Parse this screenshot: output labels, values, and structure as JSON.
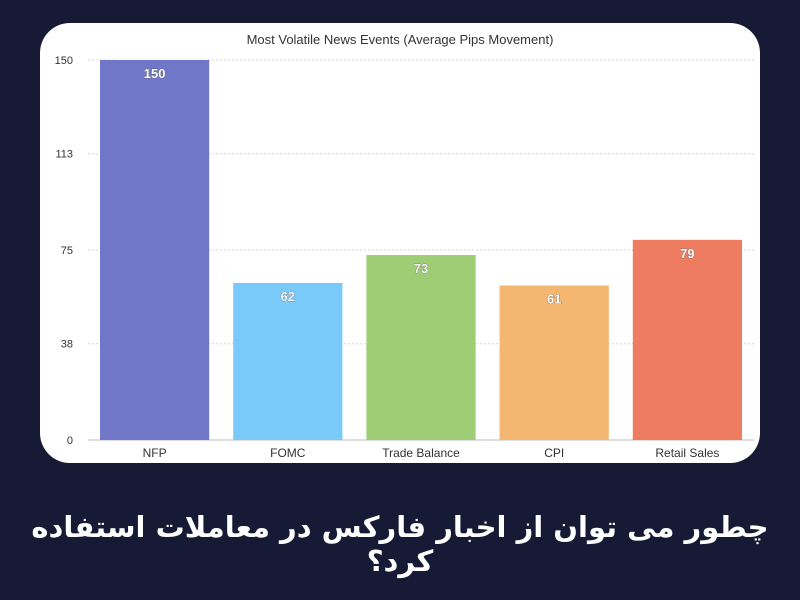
{
  "caption": "چطور می توان از اخبار فارکس در معاملات استفاده کرد؟",
  "chart_data": {
    "type": "bar",
    "title": "Most Volatile News Events (Average Pips Movement)",
    "categories": [
      "NFP",
      "FOMC",
      "Trade Balance",
      "CPI",
      "Retail Sales"
    ],
    "values": [
      150,
      62,
      73,
      61,
      79
    ],
    "colors": [
      "#7077c8",
      "#79c9f9",
      "#9ecd76",
      "#f3b771",
      "#ee7c61"
    ],
    "yticks": [
      "0",
      "38",
      "75",
      "113",
      "150"
    ],
    "ylim": [
      0,
      150
    ],
    "grid": true,
    "legend": "none"
  }
}
